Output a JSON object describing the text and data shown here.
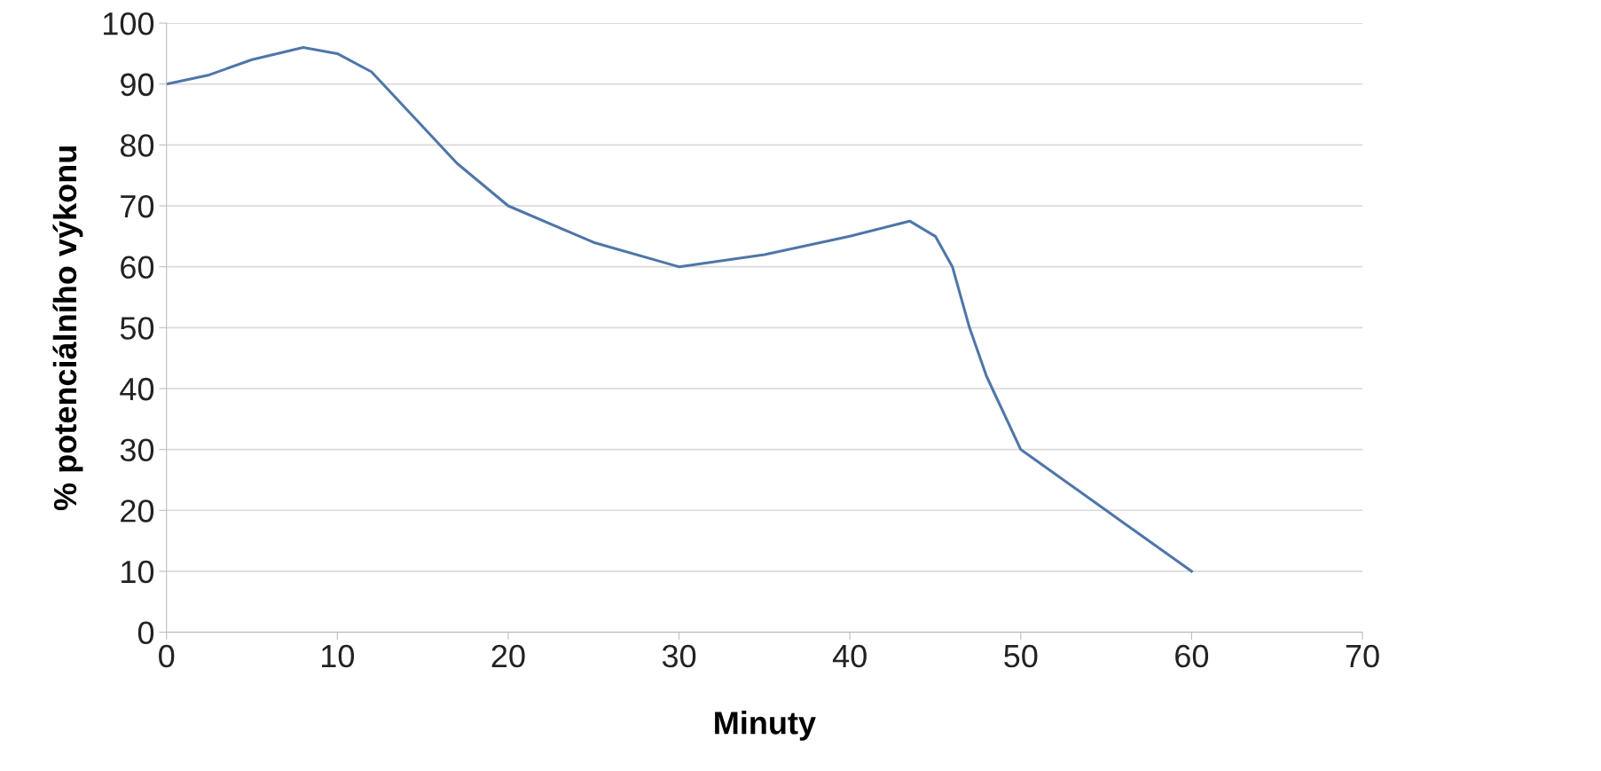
{
  "chart_data": {
    "type": "line",
    "xlabel": "Minuty",
    "ylabel": "% potenciálního výkonu",
    "x": [
      0,
      2.5,
      5,
      8,
      10,
      12,
      15,
      17,
      20,
      25,
      30,
      35,
      40,
      43.5,
      45,
      46,
      47,
      48,
      50,
      55,
      60
    ],
    "series": [
      {
        "color": "#4f76a8",
        "values": [
          90,
          91.5,
          94,
          96,
          95,
          92,
          83,
          77,
          70,
          64,
          60,
          62,
          65,
          67.5,
          65,
          60,
          50,
          42,
          30,
          20,
          10
        ]
      }
    ],
    "xlim": [
      0,
      70
    ],
    "xticks": [
      0,
      10,
      20,
      30,
      40,
      50,
      60,
      70
    ],
    "ylim": [
      0,
      100
    ],
    "yticks": [
      0,
      10,
      20,
      30,
      40,
      50,
      60,
      70,
      80,
      90,
      100
    ],
    "grid": "y",
    "marker": "none",
    "line_style": "solid"
  }
}
